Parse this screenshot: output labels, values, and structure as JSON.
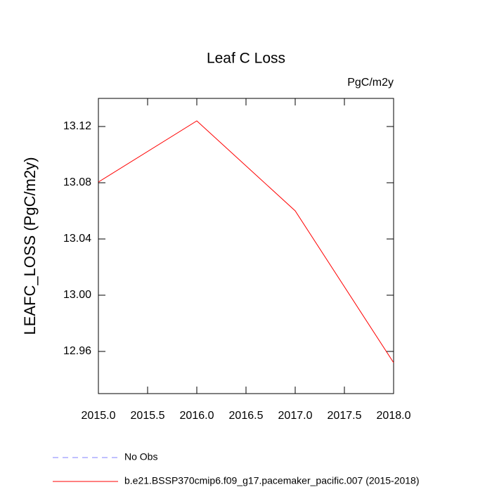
{
  "chart_data": {
    "type": "line",
    "title": "Leaf C Loss",
    "units": "PgC/m2y",
    "y_label": "LEAFC_LOSS  (PgC/m2y)",
    "x": [
      2015,
      2016,
      2017,
      2018
    ],
    "series": [
      {
        "name": "No Obs",
        "color": "#8080ff",
        "dashed": true,
        "values": [
          null,
          null,
          null,
          null
        ]
      },
      {
        "name": "b.e21.BSSP370cmip6.f09_g17.pacemaker_pacific.007 (2015-2018)",
        "color": "#ff0000",
        "dashed": false,
        "values": [
          13.0805,
          13.124,
          13.06,
          12.952
        ]
      }
    ],
    "xlim": [
      2015,
      2018
    ],
    "xticks": [
      {
        "value": 2015,
        "label": "2015.0"
      },
      {
        "value": 2015.5,
        "label": "2015.5"
      },
      {
        "value": 2016,
        "label": "2016.0"
      },
      {
        "value": 2016.5,
        "label": "2016.5"
      },
      {
        "value": 2017,
        "label": "2017.0"
      },
      {
        "value": 2017.5,
        "label": "2017.5"
      },
      {
        "value": 2018,
        "label": "2018.0"
      }
    ],
    "ylim": [
      12.93,
      13.14
    ],
    "yticks": [
      12.96,
      {
        "value": 13,
        "label": "13.00"
      },
      13.04,
      13.08,
      13.12
    ]
  }
}
